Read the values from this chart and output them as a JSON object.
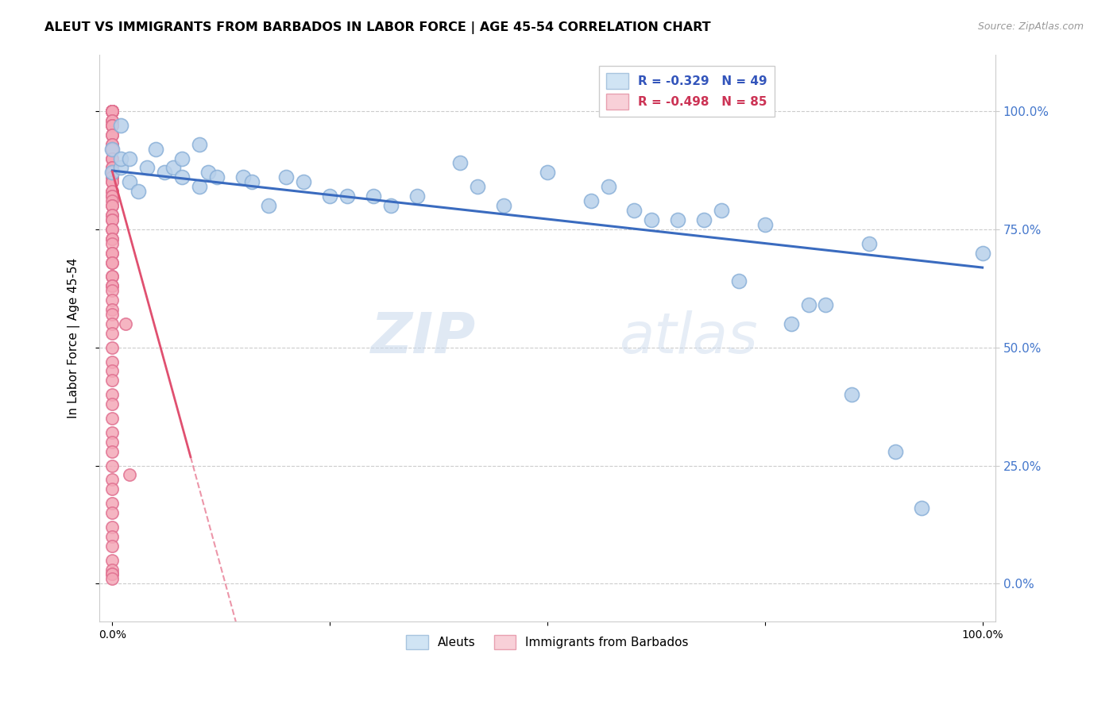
{
  "title": "ALEUT VS IMMIGRANTS FROM BARBADOS IN LABOR FORCE | AGE 45-54 CORRELATION CHART",
  "source": "Source: ZipAtlas.com",
  "ylabel": "In Labor Force | Age 45-54",
  "legend_labels": [
    "Aleuts",
    "Immigrants from Barbados"
  ],
  "r_aleuts": -0.329,
  "n_aleuts": 49,
  "r_barbados": -0.498,
  "n_barbados": 85,
  "aleut_color": "#b8d0ea",
  "barbados_color": "#f4a8b8",
  "trend_aleut_color": "#3a6bbf",
  "trend_barbados_color": "#e05070",
  "aleut_border": "#8ab0d8",
  "barbados_border": "#e07090",
  "aleuts_x": [
    0.0,
    0.0,
    0.01,
    0.01,
    0.01,
    0.02,
    0.02,
    0.03,
    0.04,
    0.05,
    0.06,
    0.07,
    0.08,
    0.08,
    0.1,
    0.1,
    0.11,
    0.12,
    0.15,
    0.16,
    0.18,
    0.2,
    0.22,
    0.25,
    0.27,
    0.3,
    0.32,
    0.35,
    0.4,
    0.42,
    0.45,
    0.5,
    0.55,
    0.57,
    0.6,
    0.62,
    0.65,
    0.68,
    0.7,
    0.72,
    0.75,
    0.78,
    0.8,
    0.82,
    0.85,
    0.87,
    0.9,
    0.93,
    1.0
  ],
  "aleuts_y": [
    0.87,
    0.92,
    0.88,
    0.9,
    0.97,
    0.9,
    0.85,
    0.83,
    0.88,
    0.92,
    0.87,
    0.88,
    0.9,
    0.86,
    0.93,
    0.84,
    0.87,
    0.86,
    0.86,
    0.85,
    0.8,
    0.86,
    0.85,
    0.82,
    0.82,
    0.82,
    0.8,
    0.82,
    0.89,
    0.84,
    0.8,
    0.87,
    0.81,
    0.84,
    0.79,
    0.77,
    0.77,
    0.77,
    0.79,
    0.64,
    0.76,
    0.55,
    0.59,
    0.59,
    0.4,
    0.72,
    0.28,
    0.16,
    0.7
  ],
  "barbados_x": [
    0.0,
    0.0,
    0.0,
    0.0,
    0.0,
    0.0,
    0.0,
    0.0,
    0.0,
    0.0,
    0.0,
    0.0,
    0.0,
    0.0,
    0.0,
    0.0,
    0.0,
    0.0,
    0.0,
    0.0,
    0.0,
    0.0,
    0.0,
    0.0,
    0.0,
    0.0,
    0.0,
    0.0,
    0.0,
    0.0,
    0.0,
    0.0,
    0.0,
    0.0,
    0.0,
    0.0,
    0.0,
    0.0,
    0.0,
    0.0,
    0.0,
    0.0,
    0.0,
    0.0,
    0.0,
    0.0,
    0.0,
    0.0,
    0.0,
    0.0,
    0.0,
    0.0,
    0.0,
    0.0,
    0.0,
    0.0,
    0.0,
    0.0,
    0.0,
    0.0,
    0.0,
    0.0,
    0.0,
    0.0,
    0.0,
    0.0,
    0.0,
    0.0,
    0.0,
    0.0,
    0.0,
    0.0,
    0.0,
    0.0,
    0.0,
    0.0,
    0.0,
    0.0,
    0.0,
    0.0,
    0.0,
    0.0,
    0.0,
    0.015,
    0.02
  ],
  "barbados_y": [
    1.0,
    1.0,
    1.0,
    1.0,
    1.0,
    1.0,
    1.0,
    1.0,
    1.0,
    0.98,
    0.98,
    0.97,
    0.97,
    0.97,
    0.95,
    0.95,
    0.93,
    0.93,
    0.92,
    0.92,
    0.9,
    0.9,
    0.88,
    0.88,
    0.87,
    0.87,
    0.86,
    0.86,
    0.85,
    0.85,
    0.83,
    0.83,
    0.82,
    0.82,
    0.81,
    0.8,
    0.8,
    0.78,
    0.78,
    0.77,
    0.77,
    0.75,
    0.75,
    0.73,
    0.73,
    0.72,
    0.7,
    0.7,
    0.68,
    0.68,
    0.65,
    0.65,
    0.63,
    0.63,
    0.62,
    0.6,
    0.58,
    0.57,
    0.55,
    0.53,
    0.5,
    0.47,
    0.45,
    0.43,
    0.4,
    0.38,
    0.35,
    0.32,
    0.3,
    0.28,
    0.25,
    0.22,
    0.2,
    0.17,
    0.15,
    0.12,
    0.1,
    0.08,
    0.05,
    0.03,
    0.02,
    0.02,
    0.01,
    0.55,
    0.23
  ],
  "trend_aleut_start_y": 0.874,
  "trend_aleut_end_y": 0.669,
  "trend_barbados_start_y": 0.872,
  "watermark_zip": "ZIP",
  "watermark_atlas": "atlas",
  "background_color": "#ffffff",
  "grid_color": "#cccccc",
  "right_label_color": "#4477cc",
  "yticks": [
    0.0,
    0.25,
    0.5,
    0.75,
    1.0
  ],
  "ytick_labels": [
    "",
    "",
    "",
    "",
    ""
  ],
  "ytick_right_labels": [
    "0.0%",
    "25.0%",
    "50.0%",
    "75.0%",
    "100.0%"
  ],
  "xticks": [
    0.0,
    0.25,
    0.5,
    0.75,
    1.0
  ],
  "xtick_labels": [
    "0.0%",
    "",
    "",
    "",
    "100.0%"
  ]
}
